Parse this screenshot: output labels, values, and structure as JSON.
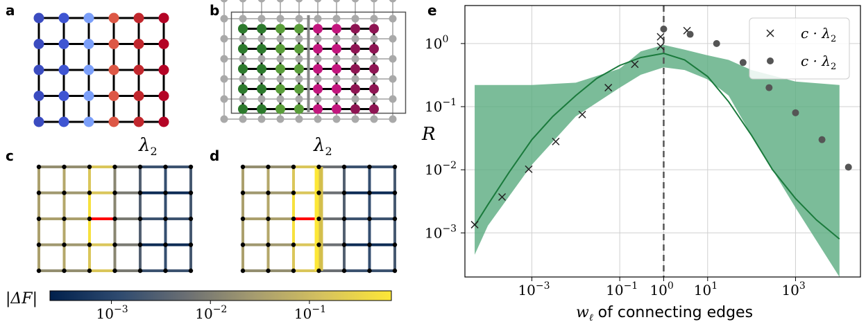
{
  "panels": {
    "a": "a",
    "b": "b",
    "c": "c",
    "d": "d",
    "e": "e"
  },
  "lambda_labels": [
    "λ",
    "2"
  ],
  "grid_panel_a": {
    "rows": 5,
    "cols": 6,
    "node_colors": [
      "#3b4cc0",
      "#3f55d2",
      "#7b9ff9",
      "#dd5846",
      "#c1272d",
      "#b40426"
    ]
  },
  "grid_panel_b": {
    "green_color": "#2d7a2d",
    "green_light": "#5a9e3a",
    "magenta_color": "#c2177e",
    "magenta_dark": "#8e1553",
    "border_color": "#a0a0a0"
  },
  "colorbar": {
    "label": "|ΔF|",
    "colors": [
      "#00204c",
      "#2e4a6f",
      "#6b6f73",
      "#a69c6f",
      "#d6c25e",
      "#fde737"
    ],
    "ticks": [
      {
        "base": "10",
        "exp": "−3",
        "pos": 0.18
      },
      {
        "base": "10",
        "exp": "−2",
        "pos": 0.47
      },
      {
        "base": "10",
        "exp": "−1",
        "pos": 0.76
      }
    ]
  },
  "chart_data": {
    "type": "line",
    "xscale": "log",
    "yscale": "log",
    "xlim": [
      3e-05,
      30000
    ],
    "ylim": [
      0.0002,
      4
    ],
    "xlabel": "w of connecting edges",
    "xlabel_symbol": "w",
    "xlabel_sub": "ℓ",
    "xlabel_rest": "of connecting edges",
    "ylabel": "R",
    "grid": true,
    "vline_x": 1,
    "x_ticks": [
      {
        "v": 0.001,
        "base": "10",
        "exp": "−3"
      },
      {
        "v": 0.1,
        "base": "10",
        "exp": "−1"
      },
      {
        "v": 1,
        "base": "10",
        "exp": "0"
      },
      {
        "v": 10,
        "base": "10",
        "exp": "1"
      },
      {
        "v": 1000,
        "base": "10",
        "exp": "3"
      }
    ],
    "y_ticks": [
      {
        "v": 0.001,
        "base": "10",
        "exp": "−3"
      },
      {
        "v": 0.01,
        "base": "10",
        "exp": "−2"
      },
      {
        "v": 0.1,
        "base": "10",
        "exp": "−1"
      },
      {
        "v": 1,
        "base": "10",
        "exp": "0"
      }
    ],
    "legend_position": "upper right",
    "legend": [
      {
        "marker": "x",
        "label": "c · λ",
        "sub": "2"
      },
      {
        "marker": "o",
        "label": "c · λ",
        "sub": "2"
      }
    ],
    "band": {
      "color": "#5aab7f",
      "x": [
        5e-05,
        0.0001,
        0.001,
        0.01,
        0.1,
        0.3,
        1,
        3,
        10,
        30,
        100,
        1000,
        10000
      ],
      "upper": [
        0.22,
        0.22,
        0.22,
        0.24,
        0.4,
        0.75,
        0.95,
        0.8,
        0.65,
        0.55,
        0.38,
        0.25,
        0.22
      ],
      "lower": [
        0.00045,
        0.0013,
        0.012,
        0.07,
        0.2,
        0.32,
        0.42,
        0.38,
        0.27,
        0.15,
        0.035,
        0.0025,
        0.0002
      ]
    },
    "series": [
      {
        "marker": "line",
        "color": "#1a7a3c",
        "x": [
          5e-05,
          0.0001,
          0.0003,
          0.001,
          0.003,
          0.01,
          0.03,
          0.1,
          0.3,
          1,
          3,
          10,
          30,
          100,
          300,
          1000,
          3000,
          10000
        ],
        "y": [
          0.0013,
          0.0028,
          0.009,
          0.03,
          0.07,
          0.15,
          0.28,
          0.45,
          0.6,
          0.7,
          0.55,
          0.3,
          0.12,
          0.035,
          0.01,
          0.0035,
          0.0016,
          0.0008
        ]
      },
      {
        "marker": "x",
        "color": "#222222",
        "x": [
          5e-05,
          0.00021,
          0.00085,
          0.0035,
          0.014,
          0.055,
          0.22,
          0.85
        ],
        "y": [
          0.00135,
          0.0037,
          0.0102,
          0.028,
          0.075,
          0.2,
          0.47,
          0.9
        ]
      },
      {
        "marker": "x",
        "color": "#222222",
        "x": [
          0.85,
          3.4
        ],
        "y": [
          1.28,
          1.6
        ]
      },
      {
        "marker": "o",
        "color": "#555555",
        "x": [
          1,
          4,
          16,
          64,
          250,
          1000,
          4000,
          16000,
          64000
        ],
        "y": [
          1.7,
          1.4,
          1.0,
          0.5,
          0.2,
          0.08,
          0.03,
          0.011,
          0.004
        ]
      }
    ]
  }
}
